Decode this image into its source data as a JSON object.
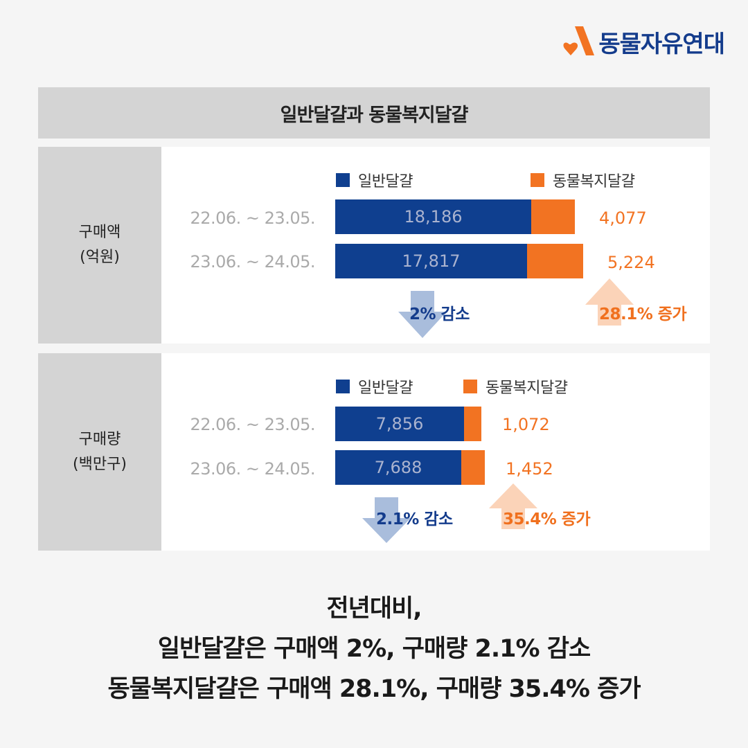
{
  "brand": {
    "name": "동물자유연대"
  },
  "title": "일반달걀과 동물복지달걀",
  "colors": {
    "general": "#0f3f8f",
    "welfare": "#f27322",
    "down_arrow": "#a9bddc",
    "up_arrow": "#fbd3b8"
  },
  "chart_data": [
    {
      "type": "bar",
      "orientation": "horizontal-stacked",
      "category_label_lines": [
        "구매액",
        "(억원)"
      ],
      "legend": [
        "일반달걀",
        "동물복지달걀"
      ],
      "categories": [
        "22.06. ~ 23.05.",
        "23.06. ~ 24.05."
      ],
      "series": [
        {
          "name": "일반달걀",
          "values": [
            18186,
            17817
          ],
          "labels": [
            "18,186",
            "17,817"
          ]
        },
        {
          "name": "동물복지달걀",
          "values": [
            4077,
            5224
          ],
          "labels": [
            "4,077",
            "5,224"
          ]
        }
      ],
      "changes": {
        "general": "2% 감소",
        "welfare": "28.1% 증가"
      }
    },
    {
      "type": "bar",
      "orientation": "horizontal-stacked",
      "category_label_lines": [
        "구매량",
        "(백만구)"
      ],
      "legend": [
        "일반달걀",
        "동물복지달걀"
      ],
      "categories": [
        "22.06. ~ 23.05.",
        "23.06. ~ 24.05."
      ],
      "series": [
        {
          "name": "일반달걀",
          "values": [
            7856,
            7688
          ],
          "labels": [
            "7,856",
            "7,688"
          ]
        },
        {
          "name": "동물복지달걀",
          "values": [
            1072,
            1452
          ],
          "labels": [
            "1,072",
            "1,452"
          ]
        }
      ],
      "changes": {
        "general": "2.1% 감소",
        "welfare": "35.4% 증가"
      }
    }
  ],
  "summary": [
    "전년대비,",
    "일반달걀은 구매액 2%, 구매량 2.1% 감소",
    "동물복지달걀은 구매액 28.1%, 구매량 35.4% 증가"
  ]
}
